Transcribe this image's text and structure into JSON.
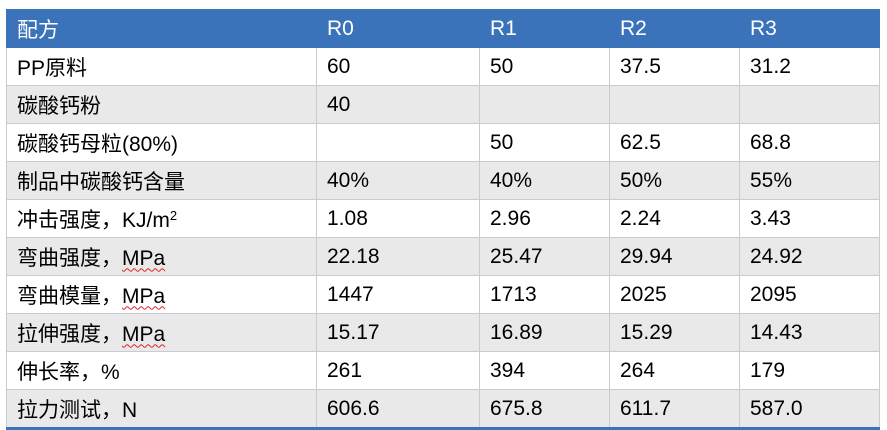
{
  "header": [
    "配方",
    "R0",
    "R1",
    "R2",
    "R3"
  ],
  "rows": [
    {
      "label": "PP原料",
      "cells": [
        "60",
        "50",
        "37.5",
        "31.2"
      ]
    },
    {
      "label": "碳酸钙粉",
      "cells": [
        "40",
        "",
        "",
        ""
      ]
    },
    {
      "label": "碳酸钙母粒(80%)",
      "cells": [
        "",
        "50",
        "62.5",
        "68.8"
      ]
    },
    {
      "label": "制品中碳酸钙含量",
      "cells": [
        "40%",
        "40%",
        "50%",
        "55%"
      ]
    },
    {
      "label_pre": "冲击强度，KJ/m",
      "label_sup": "2",
      "cells": [
        "1.08",
        "2.96",
        "2.24",
        "3.43"
      ]
    },
    {
      "label_pre": "弯曲强度，",
      "label_unit": "MPa",
      "cells": [
        "22.18",
        "25.47",
        "29.94",
        "24.92"
      ]
    },
    {
      "label_pre": "弯曲模量，",
      "label_unit": "MPa",
      "cells": [
        "1447",
        "1713",
        "2025",
        "2095"
      ]
    },
    {
      "label_pre": "拉伸强度，",
      "label_unit": "MPa",
      "cells": [
        "15.17",
        "16.89",
        "15.29",
        "14.43"
      ]
    },
    {
      "label": "伸长率，%",
      "cells": [
        "261",
        "394",
        "264",
        "179"
      ]
    },
    {
      "label": "拉力测试，N",
      "cells": [
        "606.6",
        "675.8",
        "611.7",
        "587.0"
      ]
    }
  ],
  "colors": {
    "header_bg": "#3a73b9",
    "header_text": "#ffffff",
    "row_alt_bg": "#e9e9e9",
    "border": "#c8ccd2",
    "spell_underline": "#d9262b"
  }
}
